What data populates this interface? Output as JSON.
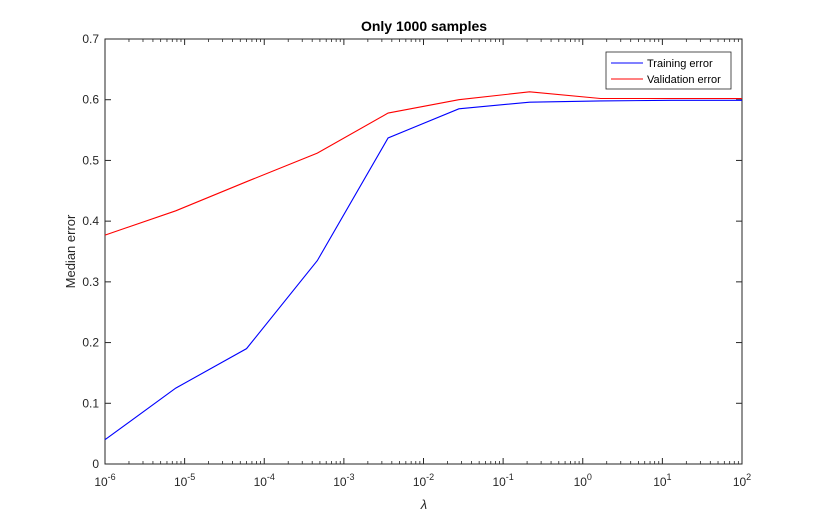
{
  "chart_data": {
    "type": "line",
    "title": "Only 1000 samples",
    "xlabel": "λ",
    "ylabel": "Median error",
    "xscale": "log",
    "xlim": [
      1e-06,
      100
    ],
    "ylim": [
      0,
      0.7
    ],
    "grid": false,
    "legend_position": "top-right",
    "x_ticks": [
      {
        "value": 1e-06,
        "base": "10",
        "exp": "-6"
      },
      {
        "value": 1e-05,
        "base": "10",
        "exp": "-5"
      },
      {
        "value": 0.0001,
        "base": "10",
        "exp": "-4"
      },
      {
        "value": 0.001,
        "base": "10",
        "exp": "-3"
      },
      {
        "value": 0.01,
        "base": "10",
        "exp": "-2"
      },
      {
        "value": 0.1,
        "base": "10",
        "exp": "-1"
      },
      {
        "value": 1,
        "base": "10",
        "exp": "0"
      },
      {
        "value": 10,
        "base": "10",
        "exp": "1"
      },
      {
        "value": 100,
        "base": "10",
        "exp": "2"
      }
    ],
    "y_ticks": [
      {
        "value": 0,
        "label": "0"
      },
      {
        "value": 0.1,
        "label": "0.1"
      },
      {
        "value": 0.2,
        "label": "0.2"
      },
      {
        "value": 0.3,
        "label": "0.3"
      },
      {
        "value": 0.4,
        "label": "0.4"
      },
      {
        "value": 0.5,
        "label": "0.5"
      },
      {
        "value": 0.6,
        "label": "0.6"
      },
      {
        "value": 0.7,
        "label": "0.7"
      }
    ],
    "series": [
      {
        "name": "Training error",
        "color": "#0000ff",
        "x": [
          1e-06,
          7.74e-06,
          5.99e-05,
          0.000464,
          0.00359,
          0.0278,
          0.215,
          1.67,
          12.9,
          100
        ],
        "y": [
          0.04,
          0.125,
          0.19,
          0.335,
          0.537,
          0.585,
          0.596,
          0.598,
          0.599,
          0.599
        ]
      },
      {
        "name": "Validation error",
        "color": "#ff0000",
        "x": [
          1e-06,
          7.74e-06,
          5.99e-05,
          0.000464,
          0.00359,
          0.0278,
          0.215,
          1.67,
          12.9,
          100
        ],
        "y": [
          0.377,
          0.417,
          0.465,
          0.512,
          0.578,
          0.6,
          0.613,
          0.602,
          0.602,
          0.602
        ]
      }
    ]
  }
}
